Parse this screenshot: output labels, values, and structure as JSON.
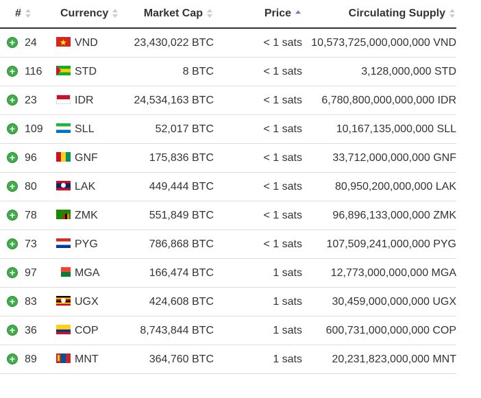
{
  "table": {
    "headers": {
      "rank": "#",
      "currency": "Currency",
      "market_cap": "Market Cap",
      "price": "Price",
      "supply": "Circulating Supply"
    },
    "rows": [
      {
        "rank": "24",
        "code": "VND",
        "flag": "vietnam-flag-icon",
        "market_cap": "23,430,022 BTC",
        "price": "< 1 sats",
        "supply": "10,573,725,000,000,000 VND"
      },
      {
        "rank": "116",
        "code": "STD",
        "flag": "sao-tome-flag-icon",
        "market_cap": "8 BTC",
        "price": "< 1 sats",
        "supply": "3,128,000,000 STD"
      },
      {
        "rank": "23",
        "code": "IDR",
        "flag": "indonesia-flag-icon",
        "market_cap": "24,534,163 BTC",
        "price": "< 1 sats",
        "supply": "6,780,800,000,000,000 IDR"
      },
      {
        "rank": "109",
        "code": "SLL",
        "flag": "sierra-leone-flag-icon",
        "market_cap": "52,017 BTC",
        "price": "< 1 sats",
        "supply": "10,167,135,000,000 SLL"
      },
      {
        "rank": "96",
        "code": "GNF",
        "flag": "guinea-flag-icon",
        "market_cap": "175,836 BTC",
        "price": "< 1 sats",
        "supply": "33,712,000,000,000 GNF"
      },
      {
        "rank": "80",
        "code": "LAK",
        "flag": "laos-flag-icon",
        "market_cap": "449,444 BTC",
        "price": "< 1 sats",
        "supply": "80,950,200,000,000 LAK"
      },
      {
        "rank": "78",
        "code": "ZMK",
        "flag": "zambia-flag-icon",
        "market_cap": "551,849 BTC",
        "price": "< 1 sats",
        "supply": "96,896,133,000,000 ZMK"
      },
      {
        "rank": "73",
        "code": "PYG",
        "flag": "paraguay-flag-icon",
        "market_cap": "786,868 BTC",
        "price": "< 1 sats",
        "supply": "107,509,241,000,000 PYG"
      },
      {
        "rank": "97",
        "code": "MGA",
        "flag": "madagascar-flag-icon",
        "market_cap": "166,474 BTC",
        "price": "1 sats",
        "supply": "12,773,000,000,000 MGA"
      },
      {
        "rank": "83",
        "code": "UGX",
        "flag": "uganda-flag-icon",
        "market_cap": "424,608 BTC",
        "price": "1 sats",
        "supply": "30,459,000,000,000 UGX"
      },
      {
        "rank": "36",
        "code": "COP",
        "flag": "colombia-flag-icon",
        "market_cap": "8,743,844 BTC",
        "price": "1 sats",
        "supply": "600,731,000,000,000 COP"
      },
      {
        "rank": "89",
        "code": "MNT",
        "flag": "mongolia-flag-icon",
        "market_cap": "364,760 BTC",
        "price": "1 sats",
        "supply": "20,231,823,000,000 MNT"
      }
    ]
  },
  "icons": {
    "add": "+"
  },
  "colors": {
    "add_button": "#3fae49",
    "sort_active": "#6a7fc1",
    "sort_inactive": "#cccccc",
    "header_border": "#333333",
    "row_border": "#dddddd"
  }
}
